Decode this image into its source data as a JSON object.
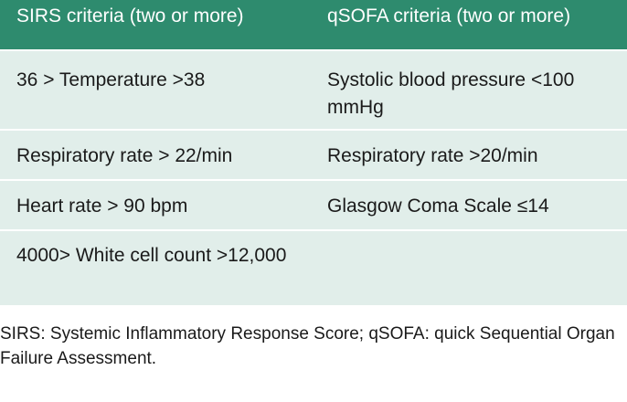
{
  "table": {
    "headers": [
      "SIRS criteria (two or more)",
      "qSOFA criteria (two or more)"
    ],
    "rows": [
      [
        "36 > Temperature >38",
        "Systolic blood pressure <100 mmHg"
      ],
      [
        "Respiratory rate > 22/min",
        "Respiratory rate >20/min"
      ],
      [
        "Heart rate > 90 bpm",
        "Glasgow Coma Scale ≤14"
      ],
      [
        "4000> White cell count >12,000",
        ""
      ]
    ],
    "header_color": "#2e8b6e",
    "row_color": "#e1eeea"
  },
  "footnote": "SIRS: Systemic Inflammatory Response Score; qSOFA: quick Sequential Organ Failure Assessment."
}
